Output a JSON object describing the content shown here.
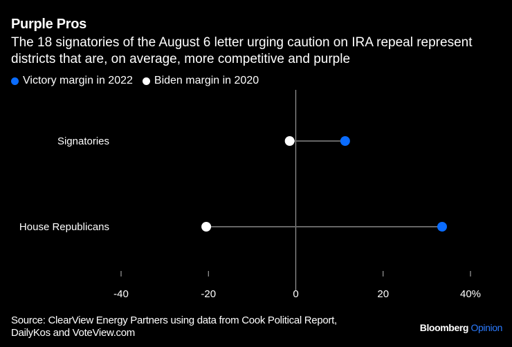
{
  "header": {
    "title": "Purple Pros",
    "subtitle": "The 18 signatories of the August 6 letter urging caution on IRA repeal represent districts that are, on average, more competitive and purple"
  },
  "footer": {
    "source": "Source: ClearView Energy Partners using data from Cook Political Report, DailyKos and VoteView.com",
    "brand": "Bloomberg",
    "brand_suffix": "Opinion"
  },
  "colors": {
    "victory": "#0a6cff",
    "biden": "#ffffff",
    "connector": "#666666",
    "axis": "#999999"
  },
  "chart_data": {
    "type": "dot-plot",
    "title": "Purple Pros",
    "categories": [
      "Signatories",
      "House Republicans"
    ],
    "series": [
      {
        "name": "Victory margin in 2022",
        "color": "#0a6cff",
        "values": [
          11.3,
          33.5
        ]
      },
      {
        "name": "Biden margin in 2020",
        "color": "#ffffff",
        "values": [
          -1.4,
          -20.5
        ]
      }
    ],
    "xlim": [
      -40,
      40
    ],
    "xticks": [
      -40,
      -20,
      0,
      20,
      40
    ],
    "xtick_labels": [
      "-40",
      "-20",
      "0",
      "20",
      "40%"
    ],
    "xlabel": "",
    "ylabel": "",
    "legend": "top-left"
  }
}
